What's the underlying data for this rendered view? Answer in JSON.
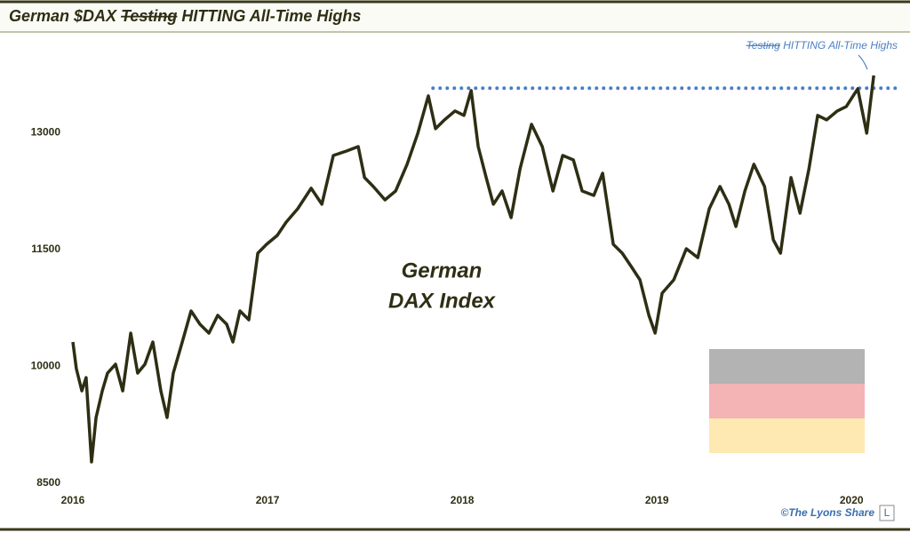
{
  "chart_data": {
    "type": "line",
    "title_parts": [
      "German $DAX",
      "Testing",
      "HITTING All-Time Highs"
    ],
    "annotation_parts": [
      "Testing",
      "HITTING All-Time Highs"
    ],
    "label_lines": [
      "German",
      "DAX Index"
    ],
    "credit": "©The Lyons Share",
    "logo": "L",
    "color": "#2e2e14",
    "annotation_color": "#4a7fc1",
    "reference_line": {
      "value": 13570,
      "x_start": 2017.85
    },
    "xlim": [
      2016,
      2020.25
    ],
    "xticks": [
      2016,
      2017,
      2018,
      2019,
      2020
    ],
    "ylim": [
      8500,
      14200
    ],
    "yticks": [
      8500,
      10000,
      11500,
      13000
    ],
    "x": [
      2016.0,
      2016.018,
      2016.046,
      2016.068,
      2016.096,
      2016.119,
      2016.151,
      2016.178,
      2016.219,
      2016.256,
      2016.297,
      2016.333,
      2016.37,
      2016.411,
      2016.452,
      2016.484,
      2016.516,
      2016.562,
      2016.607,
      2016.653,
      2016.699,
      2016.744,
      2016.79,
      2016.822,
      2016.858,
      2016.904,
      2016.95,
      2016.995,
      2017.05,
      2017.096,
      2017.155,
      2017.224,
      2017.279,
      2017.338,
      2017.406,
      2017.466,
      2017.498,
      2017.543,
      2017.603,
      2017.658,
      2017.717,
      2017.772,
      2017.826,
      2017.863,
      2017.909,
      2017.963,
      2018.009,
      2018.046,
      2018.082,
      2018.123,
      2018.16,
      2018.205,
      2018.251,
      2018.297,
      2018.356,
      2018.411,
      2018.466,
      2018.516,
      2018.571,
      2018.616,
      2018.676,
      2018.721,
      2018.776,
      2018.822,
      2018.868,
      2018.913,
      2018.959,
      2018.991,
      2019.027,
      2019.087,
      2019.151,
      2019.21,
      2019.269,
      2019.324,
      2019.37,
      2019.406,
      2019.452,
      2019.498,
      2019.553,
      2019.598,
      2019.635,
      2019.689,
      2019.735,
      2019.781,
      2019.826,
      2019.872,
      2019.927,
      2019.973,
      2020.032,
      2020.078,
      2020.114
    ],
    "values": [
      10313,
      9971,
      9686,
      9857,
      8774,
      9344,
      9686,
      9914,
      10028,
      9686,
      10427,
      9914,
      10028,
      10313,
      9686,
      9344,
      9914,
      10313,
      10712,
      10541,
      10427,
      10655,
      10541,
      10313,
      10712,
      10598,
      11453,
      11567,
      11681,
      11852,
      12023,
      12286,
      12081,
      12707,
      12764,
      12821,
      12423,
      12309,
      12137,
      12251,
      12594,
      12993,
      13472,
      13050,
      13164,
      13278,
      13221,
      13540,
      12821,
      12423,
      12081,
      12251,
      11909,
      12536,
      13107,
      12821,
      12251,
      12707,
      12650,
      12251,
      12194,
      12479,
      11567,
      11453,
      11282,
      11111,
      10655,
      10427,
      10940,
      11111,
      11510,
      11396,
      12023,
      12309,
      12081,
      11795,
      12251,
      12594,
      12309,
      11624,
      11453,
      12423,
      11966,
      12536,
      13221,
      13164,
      13278,
      13335,
      13563,
      12993,
      13734
    ]
  }
}
